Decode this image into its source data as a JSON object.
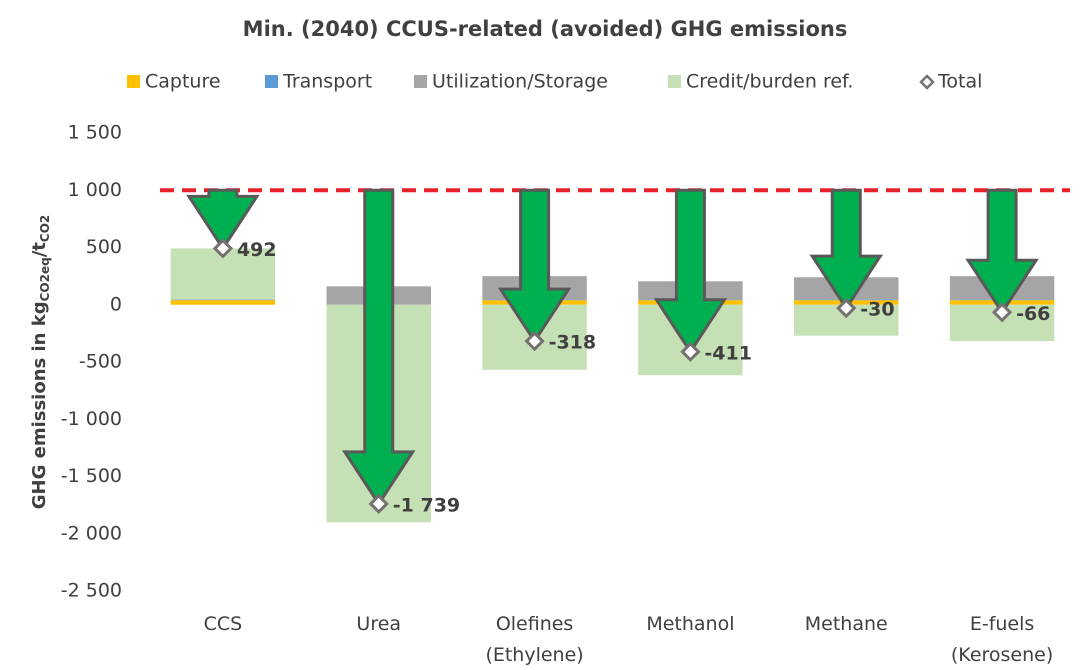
{
  "chart_data": {
    "type": "stacked_bar",
    "title": "Min. (2040) CCUS-related (avoided) GHG emissions",
    "y_label_parts": [
      {
        "text": "GHG emissions in kg"
      },
      {
        "sub": "CO2eq"
      },
      {
        "text": "/t"
      },
      {
        "sub": "CO2"
      }
    ],
    "categories": [
      [
        "CCS"
      ],
      [
        "Urea"
      ],
      [
        "Olefines",
        "(Ethylene)"
      ],
      [
        "Methanol"
      ],
      [
        "Methane"
      ],
      [
        "E-fuels",
        "(Kerosene)"
      ]
    ],
    "series": [
      {
        "name": "Capture",
        "color": "#ffc000",
        "values": [
          40,
          0,
          40,
          40,
          40,
          40
        ]
      },
      {
        "name": "Transport",
        "color": "#5b9bd5",
        "values": [
          5,
          0,
          5,
          5,
          5,
          5
        ]
      },
      {
        "name": "Utilization/Storage",
        "color": "#a5a5a5",
        "values": [
          0,
          161,
          205,
          160,
          195,
          205
        ]
      },
      {
        "name": "Credit/burden ref.",
        "color": "#c5e0b4",
        "values": [
          447,
          -1900,
          -568,
          -616,
          -270,
          -316
        ]
      }
    ],
    "total": {
      "name": "Total",
      "values": [
        492,
        -1739,
        -318,
        -411,
        -30,
        -66
      ],
      "value_labels": [
        "492",
        "-1 739",
        "-318",
        "-411",
        "-30",
        "-66"
      ],
      "marker_color": "#767171",
      "arrow_color": "#00b050"
    },
    "reference_line": 1000,
    "reference_color": "#e8202a",
    "ylim": [
      -2500,
      1500
    ],
    "yticks": [
      {
        "value": -2500,
        "label": "-2 500"
      },
      {
        "value": -2000,
        "label": "-2 000"
      },
      {
        "value": -1500,
        "label": "-1 500"
      },
      {
        "value": -1000,
        "label": "-1 000"
      },
      -500,
      0,
      500,
      {
        "value": 1000,
        "label": "1 000"
      },
      {
        "value": 1500,
        "label": "1 500"
      }
    ],
    "grid": false,
    "legend": "top"
  }
}
